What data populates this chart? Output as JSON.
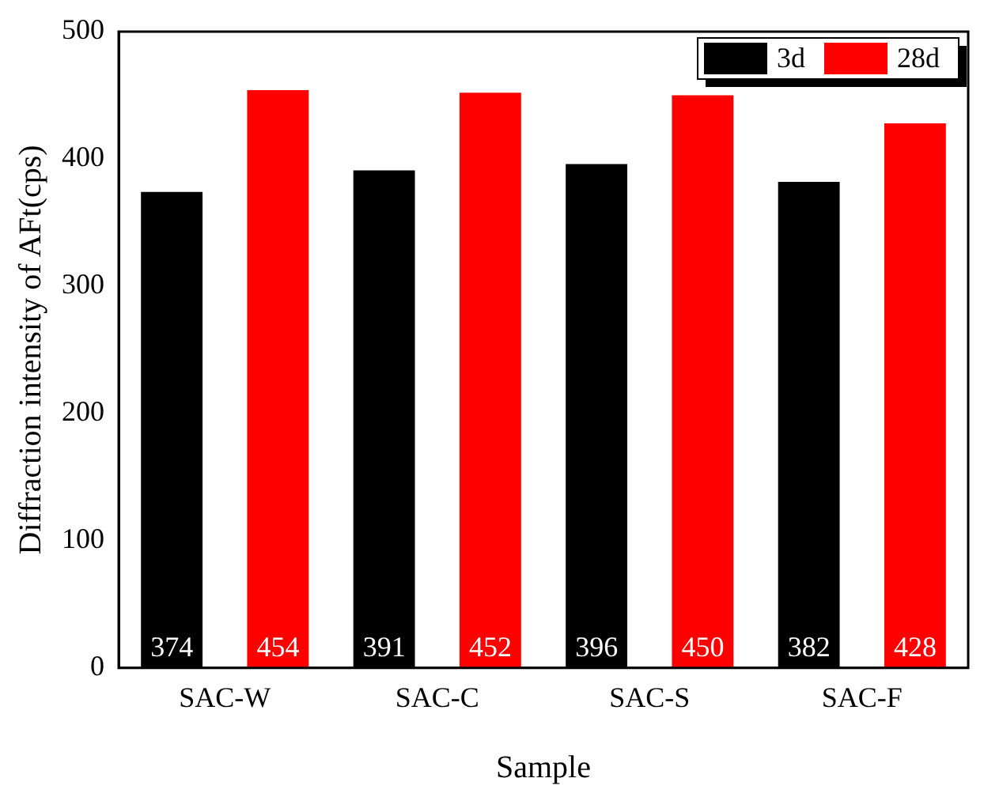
{
  "chart_data": {
    "type": "bar",
    "xlabel": "Sample",
    "ylabel": "Diffraction intensity of AFt(cps)",
    "categories": [
      "SAC-W",
      "SAC-C",
      "SAC-S",
      "SAC-F"
    ],
    "series": [
      {
        "name": "3d",
        "color": "#000000",
        "values": [
          374,
          391,
          396,
          382
        ]
      },
      {
        "name": "28d",
        "color": "#ff0000",
        "values": [
          454,
          452,
          450,
          428
        ]
      }
    ],
    "ylim": [
      0,
      500
    ],
    "yticks": [
      0,
      100,
      200,
      300,
      400,
      500
    ],
    "grid": false,
    "legend": "top right",
    "data_labels": true
  }
}
